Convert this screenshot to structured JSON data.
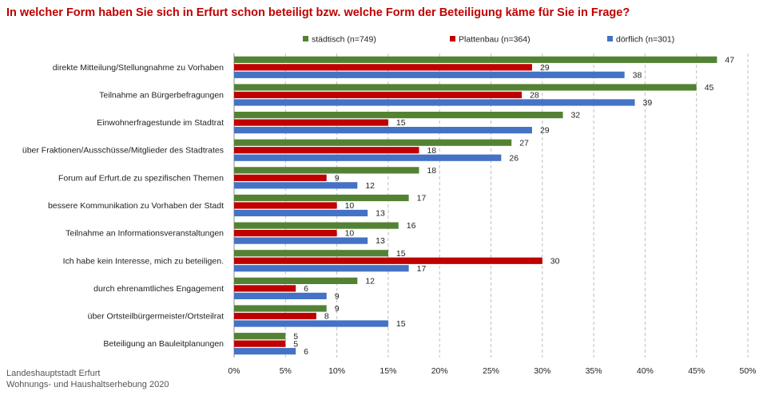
{
  "title": "In welcher Form haben Sie sich in Erfurt schon beteiligt bzw. welche Form der Beteiligung käme für Sie in Frage?",
  "footer": {
    "line1": "Landeshauptstadt Erfurt",
    "line2": "Wohnungs- und Haushaltserhebung 2020"
  },
  "chart_data": {
    "type": "bar",
    "orientation": "horizontal",
    "categories": [
      "direkte Mitteilung/Stellungnahme zu Vorhaben",
      "Teilnahme an Bürgerbefragungen",
      "Einwohnerfragestunde im Stadtrat",
      "über Fraktionen/Ausschüsse/Mitglieder des Stadtrates",
      "Forum auf Erfurt.de zu spezifischen Themen",
      "bessere Kommunikation zu Vorhaben der Stadt",
      "Teilnahme an Informationsveranstaltungen",
      "Ich habe kein Interesse, mich zu beteiligen.",
      "durch ehrenamtliches Engagement",
      "über Ortsteilbürgermeister/Ortsteilrat",
      "Beteiligung an Bauleitplanungen"
    ],
    "series": [
      {
        "name": "städtisch (n=749)",
        "color": "#548235",
        "values": [
          47,
          45,
          32,
          27,
          18,
          17,
          16,
          15,
          12,
          9,
          5
        ]
      },
      {
        "name": "Plattenbau (n=364)",
        "color": "#c00000",
        "values": [
          29,
          28,
          15,
          18,
          9,
          10,
          10,
          30,
          6,
          8,
          5
        ]
      },
      {
        "name": "dörflich (n=301)",
        "color": "#4472c4",
        "values": [
          38,
          39,
          29,
          26,
          12,
          13,
          13,
          17,
          9,
          15,
          6
        ]
      }
    ],
    "xlim": [
      0,
      50
    ],
    "xticks": [
      "0%",
      "5%",
      "10%",
      "15%",
      "20%",
      "25%",
      "30%",
      "35%",
      "40%",
      "45%",
      "50%"
    ],
    "grid": "vertical dashed",
    "legend": "top"
  }
}
